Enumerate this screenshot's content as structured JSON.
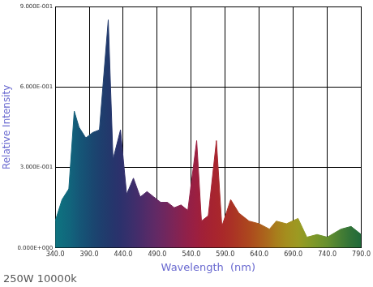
{
  "chart_data": {
    "type": "area",
    "subtitle": "250W 10000k",
    "x_label": "Wavelength  (nm)",
    "y_label": "Relative Intensity",
    "x": [
      340,
      350,
      360,
      368,
      375,
      385,
      395,
      405,
      418,
      425,
      436,
      445,
      455,
      465,
      475,
      485,
      495,
      505,
      515,
      525,
      535,
      548,
      555,
      565,
      577,
      585,
      598,
      610,
      625,
      640,
      655,
      665,
      680,
      697,
      710,
      725,
      740,
      760,
      775,
      790
    ],
    "values": [
      0.1,
      0.18,
      0.22,
      0.51,
      0.45,
      0.41,
      0.43,
      0.44,
      0.85,
      0.33,
      0.44,
      0.2,
      0.26,
      0.19,
      0.21,
      0.19,
      0.17,
      0.17,
      0.15,
      0.16,
      0.14,
      0.4,
      0.1,
      0.12,
      0.4,
      0.08,
      0.18,
      0.13,
      0.1,
      0.09,
      0.07,
      0.1,
      0.09,
      0.11,
      0.04,
      0.05,
      0.04,
      0.07,
      0.08,
      0.05
    ],
    "colors": [
      "#0f7480",
      "#0f6d7e",
      "#11667c",
      "#135e7a",
      "#155777",
      "#174f74",
      "#1a4770",
      "#1d406e",
      "#22396c",
      "#26356c",
      "#2c316c",
      "#34306c",
      "#3e2e6b",
      "#482c6a",
      "#542b68",
      "#5e2a66",
      "#692862",
      "#73265c",
      "#7e2456",
      "#88224f",
      "#922048",
      "#9c1f40",
      "#a02039",
      "#a42233",
      "#a8252e",
      "#a9282a",
      "#aa3026",
      "#ab3a22",
      "#ac481e",
      "#ac5a1c",
      "#aa6e1c",
      "#a87e1c",
      "#a48e1e",
      "#9c9a22",
      "#8a9a26",
      "#78962a",
      "#66902e",
      "#467e34",
      "#307238",
      "#206a3a"
    ],
    "xlim": [
      340,
      790
    ],
    "xticks": [
      {
        "value": 340,
        "label": "340.0"
      },
      {
        "value": 390,
        "label": "390.0"
      },
      {
        "value": 440,
        "label": "440.0"
      },
      {
        "value": 490,
        "label": "490.0"
      },
      {
        "value": 540,
        "label": "540.0"
      },
      {
        "value": 590,
        "label": "590.0"
      },
      {
        "value": 640,
        "label": "640.0"
      },
      {
        "value": 690,
        "label": "690.0"
      },
      {
        "value": 740,
        "label": "740.0"
      },
      {
        "value": 790,
        "label": "790.0"
      }
    ],
    "ylim": [
      0,
      0.9
    ],
    "yticks": [
      {
        "value": 0,
        "label": "0.000E+000"
      },
      {
        "value": 0.3,
        "label": "3.000E-001"
      },
      {
        "value": 0.6,
        "label": "6.000E-001"
      },
      {
        "value": 0.9,
        "label": "9.000E-001"
      }
    ],
    "grid": true
  }
}
